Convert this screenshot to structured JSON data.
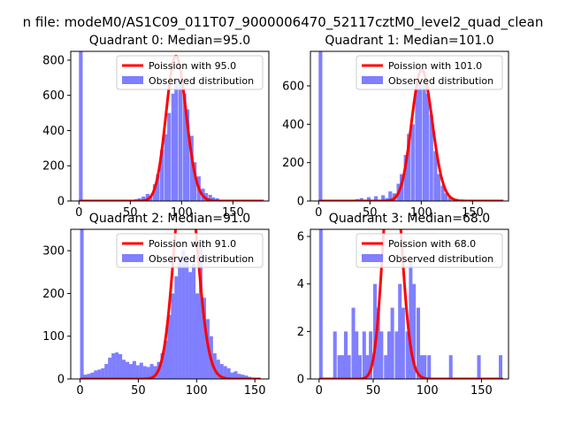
{
  "figure_title": "n file: modeM0/AS1C09_011T07_9000006470_52117cztM0_level2_quad_clean",
  "colors": {
    "hist": "#7f7fff",
    "fit": "#ff0000",
    "axis": "#000000"
  },
  "chart_data": [
    {
      "type": "bar",
      "title": "Quadrant 0: Median=95.0",
      "xlim": [
        -8,
        185
      ],
      "ylim": [
        0,
        850
      ],
      "xticks": [
        0,
        50,
        100,
        150
      ],
      "yticks": [
        0,
        200,
        400,
        600,
        800
      ],
      "legend": [
        "Poission with 95.0",
        "Observed distribution"
      ],
      "median": 95.0,
      "bin_width": 3.6,
      "hist": [
        [
          0,
          850
        ],
        [
          54,
          10
        ],
        [
          57,
          15
        ],
        [
          61,
          25
        ],
        [
          65,
          40
        ],
        [
          68,
          30
        ],
        [
          72,
          95
        ],
        [
          75,
          150
        ],
        [
          79,
          290
        ],
        [
          83,
          380
        ],
        [
          86,
          500
        ],
        [
          90,
          610
        ],
        [
          93,
          700
        ],
        [
          97,
          700
        ],
        [
          101,
          610
        ],
        [
          104,
          520
        ],
        [
          108,
          370
        ],
        [
          111,
          220
        ],
        [
          115,
          140
        ],
        [
          119,
          70
        ],
        [
          122,
          45
        ],
        [
          126,
          35
        ],
        [
          129,
          20
        ],
        [
          133,
          15
        ]
      ],
      "curve_x": [
        0,
        180
      ]
    },
    {
      "type": "bar",
      "title": "Quadrant 1: Median=101.0",
      "xlim": [
        -8,
        185
      ],
      "ylim": [
        0,
        780
      ],
      "xticks": [
        0,
        50,
        100,
        150
      ],
      "yticks": [
        0,
        200,
        400,
        600
      ],
      "legend": [
        "Poission with 101.0",
        "Observed distribution"
      ],
      "median": 101.0,
      "bin_width": 3.6,
      "hist": [
        [
          0,
          780
        ],
        [
          36,
          10
        ],
        [
          40,
          15
        ],
        [
          47,
          20
        ],
        [
          54,
          25
        ],
        [
          61,
          30
        ],
        [
          65,
          15
        ],
        [
          68,
          50
        ],
        [
          72,
          40
        ],
        [
          76,
          90
        ],
        [
          79,
          140
        ],
        [
          83,
          240
        ],
        [
          86,
          350
        ],
        [
          90,
          400
        ],
        [
          94,
          580
        ],
        [
          97,
          610
        ],
        [
          101,
          620
        ],
        [
          104,
          560
        ],
        [
          108,
          450
        ],
        [
          112,
          260
        ],
        [
          115,
          140
        ],
        [
          119,
          80
        ],
        [
          122,
          40
        ],
        [
          126,
          20
        ]
      ],
      "curve_x": [
        0,
        180
      ]
    },
    {
      "type": "bar",
      "title": "Quadrant 2: Median=91.0",
      "xlim": [
        -8,
        162
      ],
      "ylim": [
        0,
        350
      ],
      "xticks": [
        0,
        50,
        100,
        150
      ],
      "yticks": [
        0,
        100,
        200,
        300
      ],
      "legend": [
        "Poission with 91.0",
        "Observed distribution"
      ],
      "median": 91.0,
      "bin_width": 3.1,
      "hist": [
        [
          0,
          350
        ],
        [
          3,
          10
        ],
        [
          6,
          12
        ],
        [
          9,
          15
        ],
        [
          12,
          20
        ],
        [
          15,
          22
        ],
        [
          18,
          25
        ],
        [
          21,
          35
        ],
        [
          24,
          50
        ],
        [
          27,
          60
        ],
        [
          30,
          62
        ],
        [
          33,
          58
        ],
        [
          36,
          45
        ],
        [
          39,
          40
        ],
        [
          42,
          35
        ],
        [
          45,
          42
        ],
        [
          48,
          32
        ],
        [
          51,
          38
        ],
        [
          54,
          30
        ],
        [
          57,
          28
        ],
        [
          60,
          35
        ],
        [
          63,
          30
        ],
        [
          66,
          40
        ],
        [
          69,
          60
        ],
        [
          72,
          90
        ],
        [
          75,
          150
        ],
        [
          78,
          200
        ],
        [
          81,
          240
        ],
        [
          84,
          280
        ],
        [
          87,
          300
        ],
        [
          90,
          290
        ],
        [
          93,
          250
        ],
        [
          96,
          270
        ],
        [
          99,
          200
        ],
        [
          102,
          310
        ],
        [
          105,
          190
        ],
        [
          108,
          140
        ],
        [
          111,
          100
        ],
        [
          114,
          60
        ],
        [
          117,
          45
        ],
        [
          120,
          35
        ],
        [
          123,
          30
        ],
        [
          126,
          25
        ],
        [
          129,
          15
        ],
        [
          132,
          18
        ],
        [
          135,
          12
        ],
        [
          138,
          10
        ],
        [
          141,
          8
        ],
        [
          144,
          5
        ],
        [
          147,
          3
        ]
      ],
      "curve_x": [
        0,
        155
      ]
    },
    {
      "type": "bar",
      "title": "Quadrant 3: Median=68.0",
      "xlim": [
        -8,
        175
      ],
      "ylim": [
        0,
        6.3
      ],
      "xticks": [
        0,
        50,
        100,
        150
      ],
      "yticks": [
        0,
        2,
        4,
        6
      ],
      "legend": [
        "Poission with 68.0",
        "Observed distribution"
      ],
      "median": 68.0,
      "bin_width": 3.3,
      "hist": [
        [
          0,
          6.3
        ],
        [
          13,
          2
        ],
        [
          17,
          1
        ],
        [
          20,
          1
        ],
        [
          23,
          2
        ],
        [
          26,
          1
        ],
        [
          30,
          3
        ],
        [
          33,
          2
        ],
        [
          36,
          1
        ],
        [
          40,
          2
        ],
        [
          43,
          1
        ],
        [
          46,
          2
        ],
        [
          50,
          4
        ],
        [
          53,
          3
        ],
        [
          56,
          2
        ],
        [
          60,
          1
        ],
        [
          63,
          2
        ],
        [
          66,
          3
        ],
        [
          70,
          2
        ],
        [
          73,
          4
        ],
        [
          76,
          3
        ],
        [
          80,
          2
        ],
        [
          83,
          5
        ],
        [
          86,
          4
        ],
        [
          90,
          3
        ],
        [
          93,
          1
        ],
        [
          96,
          1
        ],
        [
          100,
          1
        ],
        [
          120,
          1
        ],
        [
          146,
          1
        ],
        [
          166,
          1
        ]
      ],
      "curve_x": [
        0,
        170
      ]
    }
  ]
}
